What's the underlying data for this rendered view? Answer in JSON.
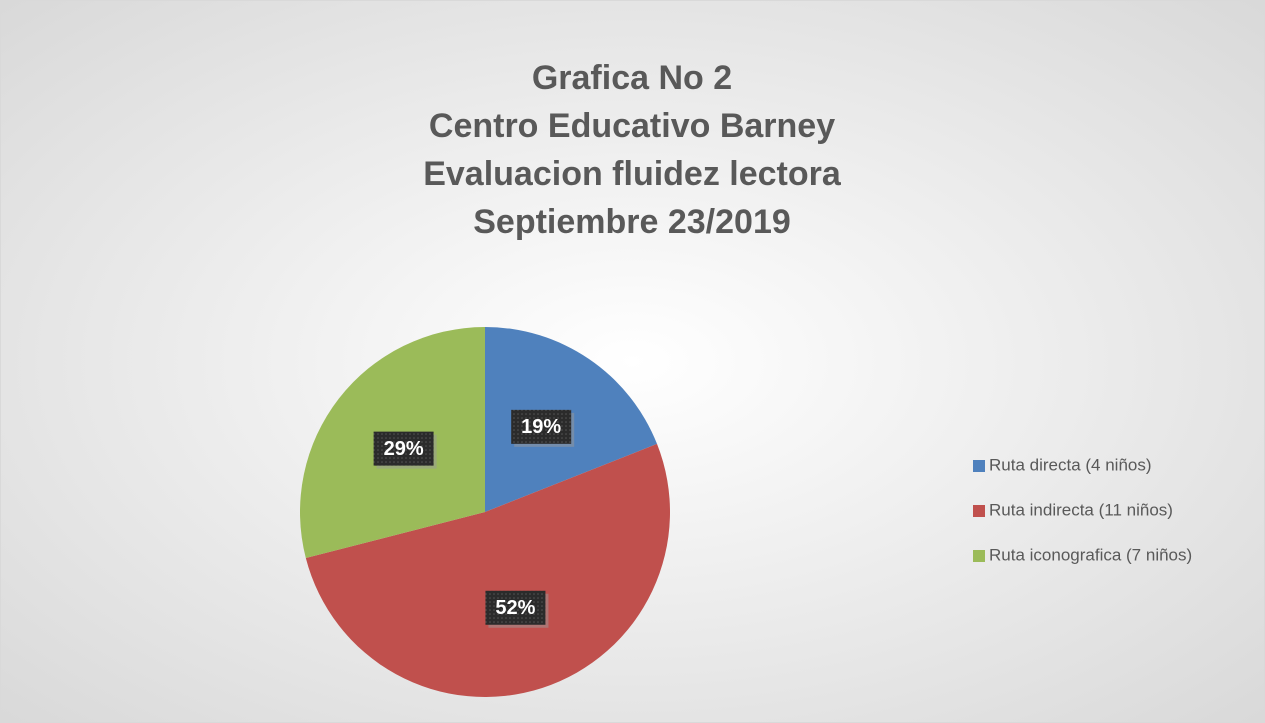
{
  "chart_data": {
    "type": "pie",
    "title": [
      "Grafica No 2",
      "Centro Educativo Barney",
      "Evaluacion fluidez lectora",
      "Septiembre 23/2019"
    ],
    "categories": [
      "Ruta directa (4 niños)",
      "Ruta indirecta (11 niños)",
      "Ruta iconografica (7 niños)"
    ],
    "values": [
      19,
      52,
      29
    ],
    "value_labels": [
      "19%",
      "52%",
      "29%"
    ],
    "colors": [
      "#4f81bd",
      "#c0504d",
      "#9bbb59"
    ],
    "legend": "right"
  }
}
